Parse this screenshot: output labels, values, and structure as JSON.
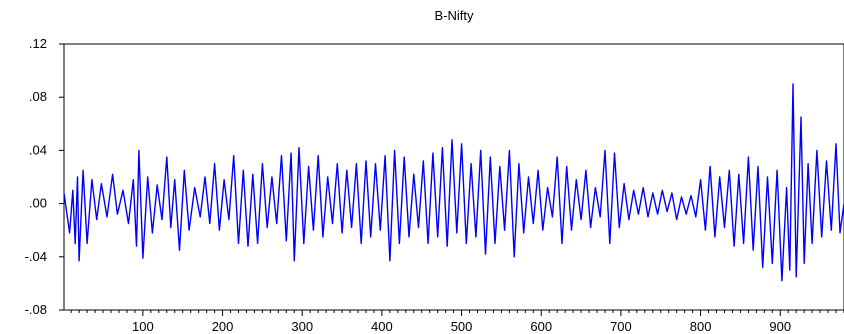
{
  "chart_data": {
    "type": "line",
    "title": "B-Nifty",
    "xlabel": "",
    "ylabel": "",
    "xlim": [
      1,
      980
    ],
    "ylim": [
      -0.08,
      0.12
    ],
    "x_ticks": [
      100,
      200,
      300,
      400,
      500,
      600,
      700,
      800,
      900
    ],
    "y_ticks": [
      ".12",
      ".08",
      ".04",
      ".00",
      "-.04",
      "-.08"
    ],
    "y_tick_values": [
      0.12,
      0.08,
      0.04,
      0.0,
      -0.04,
      -0.08
    ],
    "grid": false,
    "series": [
      {
        "color": "#0000ff",
        "points": [
          [
            1,
            0.008
          ],
          [
            8,
            -0.022
          ],
          [
            12,
            0.01
          ],
          [
            15,
            -0.03
          ],
          [
            18,
            0.02
          ],
          [
            20,
            -0.043
          ],
          [
            25,
            0.025
          ],
          [
            30,
            -0.03
          ],
          [
            36,
            0.018
          ],
          [
            42,
            -0.012
          ],
          [
            48,
            0.015
          ],
          [
            55,
            -0.01
          ],
          [
            62,
            0.022
          ],
          [
            68,
            -0.008
          ],
          [
            75,
            0.01
          ],
          [
            82,
            -0.015
          ],
          [
            88,
            0.018
          ],
          [
            92,
            -0.032
          ],
          [
            95,
            0.04
          ],
          [
            100,
            -0.041
          ],
          [
            106,
            0.02
          ],
          [
            112,
            -0.022
          ],
          [
            118,
            0.014
          ],
          [
            124,
            -0.012
          ],
          [
            130,
            0.035
          ],
          [
            135,
            -0.018
          ],
          [
            140,
            0.018
          ],
          [
            146,
            -0.035
          ],
          [
            152,
            0.025
          ],
          [
            158,
            -0.02
          ],
          [
            165,
            0.012
          ],
          [
            172,
            -0.01
          ],
          [
            178,
            0.02
          ],
          [
            184,
            -0.015
          ],
          [
            190,
            0.03
          ],
          [
            196,
            -0.02
          ],
          [
            202,
            0.018
          ],
          [
            208,
            -0.012
          ],
          [
            214,
            0.036
          ],
          [
            220,
            -0.03
          ],
          [
            226,
            0.025
          ],
          [
            232,
            -0.032
          ],
          [
            238,
            0.022
          ],
          [
            244,
            -0.03
          ],
          [
            250,
            0.03
          ],
          [
            256,
            -0.018
          ],
          [
            262,
            0.02
          ],
          [
            268,
            -0.015
          ],
          [
            274,
            0.036
          ],
          [
            280,
            -0.028
          ],
          [
            286,
            0.038
          ],
          [
            290,
            -0.043
          ],
          [
            296,
            0.042
          ],
          [
            302,
            -0.03
          ],
          [
            308,
            0.028
          ],
          [
            314,
            -0.02
          ],
          [
            320,
            0.036
          ],
          [
            326,
            -0.025
          ],
          [
            332,
            0.02
          ],
          [
            338,
            -0.015
          ],
          [
            344,
            0.03
          ],
          [
            350,
            -0.022
          ],
          [
            356,
            0.025
          ],
          [
            362,
            -0.018
          ],
          [
            368,
            0.03
          ],
          [
            374,
            -0.03
          ],
          [
            380,
            0.032
          ],
          [
            386,
            -0.025
          ],
          [
            392,
            0.03
          ],
          [
            398,
            -0.02
          ],
          [
            404,
            0.036
          ],
          [
            410,
            -0.043
          ],
          [
            416,
            0.04
          ],
          [
            422,
            -0.03
          ],
          [
            428,
            0.035
          ],
          [
            434,
            -0.025
          ],
          [
            440,
            0.022
          ],
          [
            446,
            -0.018
          ],
          [
            452,
            0.032
          ],
          [
            458,
            -0.03
          ],
          [
            464,
            0.038
          ],
          [
            470,
            -0.025
          ],
          [
            476,
            0.042
          ],
          [
            482,
            -0.032
          ],
          [
            488,
            0.048
          ],
          [
            494,
            -0.022
          ],
          [
            500,
            0.045
          ],
          [
            506,
            -0.03
          ],
          [
            512,
            0.03
          ],
          [
            518,
            -0.025
          ],
          [
            524,
            0.04
          ],
          [
            530,
            -0.038
          ],
          [
            536,
            0.035
          ],
          [
            542,
            -0.03
          ],
          [
            548,
            0.028
          ],
          [
            554,
            -0.02
          ],
          [
            560,
            0.04
          ],
          [
            566,
            -0.04
          ],
          [
            572,
            0.03
          ],
          [
            578,
            -0.022
          ],
          [
            584,
            0.02
          ],
          [
            590,
            -0.015
          ],
          [
            596,
            0.025
          ],
          [
            602,
            -0.02
          ],
          [
            608,
            0.012
          ],
          [
            614,
            -0.01
          ],
          [
            620,
            0.035
          ],
          [
            626,
            -0.03
          ],
          [
            632,
            0.028
          ],
          [
            638,
            -0.02
          ],
          [
            644,
            0.018
          ],
          [
            650,
            -0.012
          ],
          [
            656,
            0.025
          ],
          [
            662,
            -0.018
          ],
          [
            668,
            0.012
          ],
          [
            674,
            -0.01
          ],
          [
            680,
            0.04
          ],
          [
            686,
            -0.03
          ],
          [
            692,
            0.038
          ],
          [
            698,
            -0.018
          ],
          [
            704,
            0.015
          ],
          [
            710,
            -0.012
          ],
          [
            716,
            0.01
          ],
          [
            722,
            -0.008
          ],
          [
            728,
            0.012
          ],
          [
            734,
            -0.01
          ],
          [
            740,
            0.008
          ],
          [
            746,
            -0.008
          ],
          [
            752,
            0.01
          ],
          [
            758,
            -0.006
          ],
          [
            764,
            0.008
          ],
          [
            770,
            -0.012
          ],
          [
            776,
            0.005
          ],
          [
            782,
            -0.008
          ],
          [
            788,
            0.006
          ],
          [
            794,
            -0.01
          ],
          [
            800,
            0.018
          ],
          [
            806,
            -0.02
          ],
          [
            812,
            0.028
          ],
          [
            818,
            -0.025
          ],
          [
            824,
            0.02
          ],
          [
            830,
            -0.018
          ],
          [
            836,
            0.025
          ],
          [
            842,
            -0.032
          ],
          [
            848,
            0.022
          ],
          [
            854,
            -0.03
          ],
          [
            860,
            0.035
          ],
          [
            866,
            -0.035
          ],
          [
            872,
            0.028
          ],
          [
            878,
            -0.048
          ],
          [
            884,
            0.02
          ],
          [
            890,
            -0.045
          ],
          [
            896,
            0.025
          ],
          [
            902,
            -0.058
          ],
          [
            908,
            0.012
          ],
          [
            912,
            -0.05
          ],
          [
            916,
            0.09
          ],
          [
            920,
            -0.055
          ],
          [
            926,
            0.065
          ],
          [
            930,
            -0.045
          ],
          [
            935,
            0.03
          ],
          [
            940,
            -0.03
          ],
          [
            946,
            0.04
          ],
          [
            952,
            -0.025
          ],
          [
            958,
            0.032
          ],
          [
            964,
            -0.02
          ],
          [
            970,
            0.045
          ],
          [
            975,
            -0.022
          ],
          [
            980,
            0.0
          ]
        ]
      }
    ]
  }
}
